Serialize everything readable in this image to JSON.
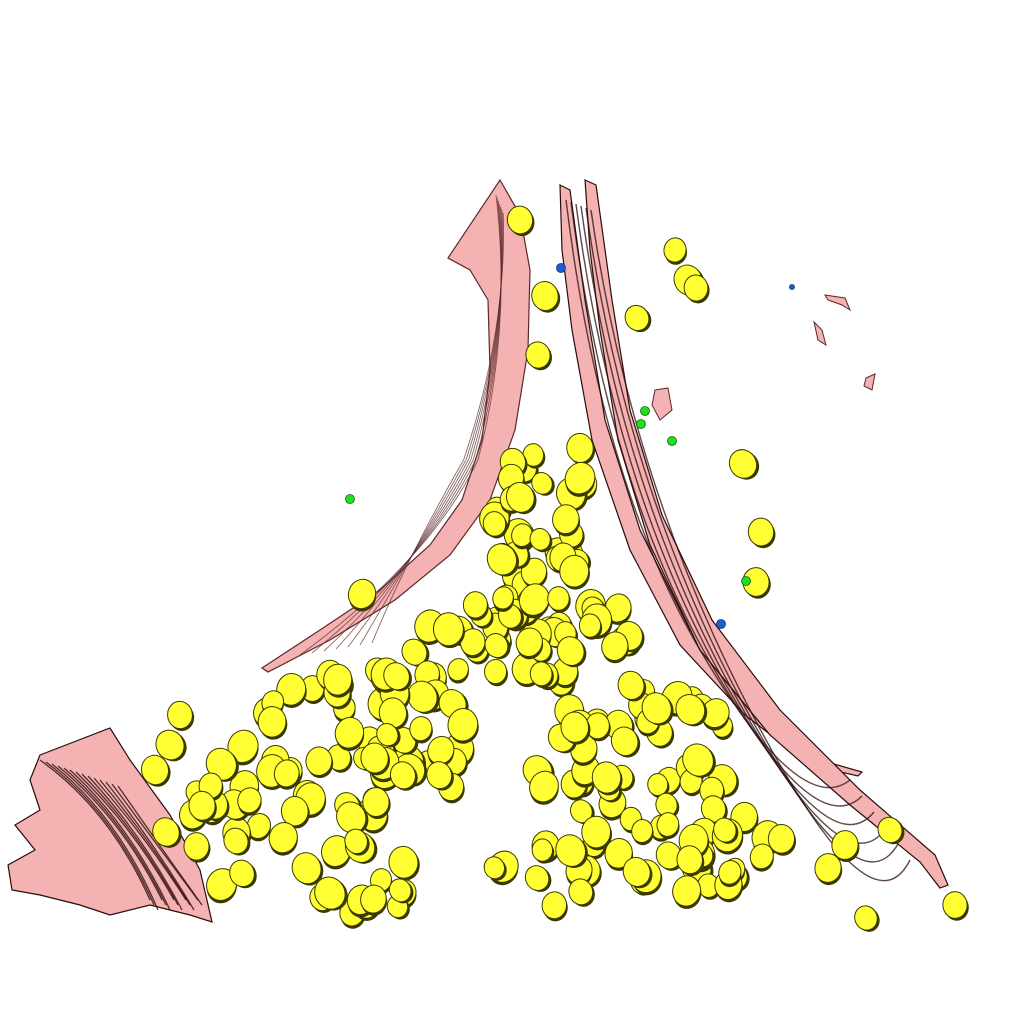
{
  "scene": {
    "background": "#ffffff",
    "colors": {
      "fiber_fill": "#f4b2b2",
      "fiber_shade": "#5a2a2a",
      "fiber_dark": "#2a0c0c",
      "droplet_fill": "#ffff33",
      "droplet_edge": "#3a3a00",
      "green_particle": "#22dd22",
      "blue_particle": "#1a5fd0"
    }
  }
}
